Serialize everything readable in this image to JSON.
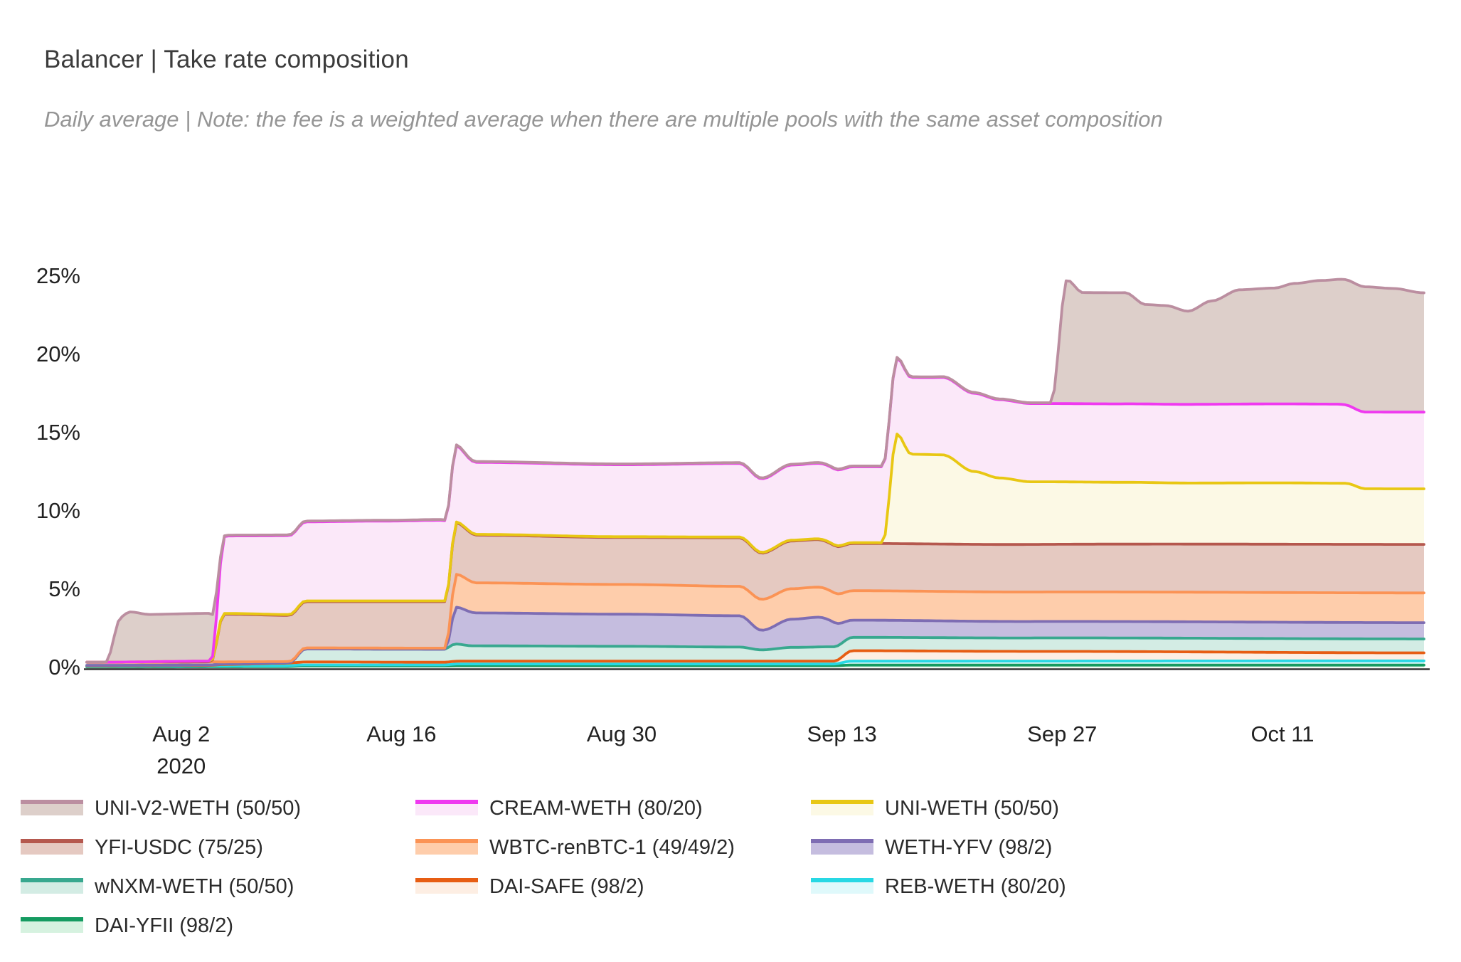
{
  "header": {
    "title": "Balancer | Take rate composition",
    "subtitle": "Daily average | Note: the fee is a weighted average when there are multiple pools with the same asset composition"
  },
  "chart_data": {
    "type": "area",
    "stacked": true,
    "title": "Balancer | Take rate composition",
    "subtitle": "Daily average | Note: the fee is a weighted average when there are multiple pools with the same asset composition",
    "x_axis": {
      "start_date": "2020-07-27",
      "end_date": "2020-10-20",
      "year_label": "2020",
      "ticks": [
        {
          "day": 6,
          "label": "Aug 2",
          "sublabel": "2020"
        },
        {
          "day": 20,
          "label": "Aug 16"
        },
        {
          "day": 34,
          "label": "Aug 30"
        },
        {
          "day": 48,
          "label": "Sep 13"
        },
        {
          "day": 62,
          "label": "Sep 27"
        },
        {
          "day": 76,
          "label": "Oct 11"
        }
      ]
    },
    "y_axis": {
      "unit": "%",
      "ticks": [
        0,
        5,
        10,
        15,
        20,
        25
      ],
      "max": 25.6
    },
    "axis_color": "#333333",
    "note": "series listed bottom-to-top of stack; keyframes are [day_since_2020-07-27, value_percent]",
    "series": [
      {
        "name": "DAI-YFII (98/2)",
        "line_color": "#159b61",
        "fill_color": "#d6f2e0",
        "keyframes": [
          [
            0,
            0.03
          ],
          [
            12.5,
            0.05
          ],
          [
            13.8,
            0.09
          ],
          [
            22.7,
            0.09
          ],
          [
            23.6,
            0.11
          ],
          [
            47.5,
            0.11
          ],
          [
            48.6,
            0.15
          ],
          [
            85,
            0.15
          ]
        ]
      },
      {
        "name": "REB-WETH (80/20)",
        "line_color": "#28d8e4",
        "fill_color": "#dff9fb",
        "keyframes": [
          [
            0,
            0.03
          ],
          [
            12.5,
            0.05
          ],
          [
            13.8,
            0.07
          ],
          [
            22.7,
            0.07
          ],
          [
            23.6,
            0.11
          ],
          [
            47.5,
            0.11
          ],
          [
            48.6,
            0.25
          ],
          [
            85,
            0.27
          ]
        ]
      },
      {
        "name": "DAI-SAFE (98/2)",
        "line_color": "#e75d13",
        "fill_color": "#fdeee3",
        "keyframes": [
          [
            0,
            0.04
          ],
          [
            7.8,
            0.04
          ],
          [
            8.7,
            0.1
          ],
          [
            13.2,
            0.17
          ],
          [
            14,
            0.19
          ],
          [
            22.7,
            0.17
          ],
          [
            23.6,
            0.18
          ],
          [
            47.5,
            0.18
          ],
          [
            48.7,
            0.67
          ],
          [
            60,
            0.62
          ],
          [
            85,
            0.51
          ]
        ]
      },
      {
        "name": "wNXM-WETH (50/50)",
        "line_color": "#38a88f",
        "fill_color": "#d3ece4",
        "keyframes": [
          [
            0,
            0.03
          ],
          [
            12.9,
            0.03
          ],
          [
            13.9,
            0.83
          ],
          [
            22.7,
            0.83
          ],
          [
            23.4,
            1.1
          ],
          [
            24.5,
            0.98
          ],
          [
            34,
            0.95
          ],
          [
            41.5,
            0.9
          ],
          [
            42.9,
            0.72
          ],
          [
            44.8,
            0.88
          ],
          [
            47.5,
            0.92
          ],
          [
            48.7,
            0.85
          ],
          [
            85,
            0.89
          ]
        ]
      },
      {
        "name": "WETH-YFV (98/2)",
        "line_color": "#7e6db3",
        "fill_color": "#c5bddf",
        "keyframes": [
          [
            0,
            0
          ],
          [
            22.8,
            0
          ],
          [
            23.5,
            2.35
          ],
          [
            24.8,
            2.1
          ],
          [
            34,
            2.05
          ],
          [
            41.5,
            2.0
          ],
          [
            42.9,
            1.25
          ],
          [
            44.8,
            1.8
          ],
          [
            46.5,
            1.9
          ],
          [
            48.7,
            1.1
          ],
          [
            60,
            1.05
          ],
          [
            85,
            1.04
          ]
        ]
      },
      {
        "name": "WBTC-renBTC-1 (49/49/2)",
        "line_color": "#fb9355",
        "fill_color": "#fecdab",
        "keyframes": [
          [
            0,
            0.2
          ],
          [
            7.8,
            0.2
          ],
          [
            8.7,
            0.13
          ],
          [
            13.2,
            0.07
          ],
          [
            22.8,
            0.07
          ],
          [
            23.5,
            2.1
          ],
          [
            24.8,
            1.92
          ],
          [
            34,
            1.9
          ],
          [
            41.5,
            1.88
          ],
          [
            42.9,
            1.98
          ],
          [
            44.8,
            1.95
          ],
          [
            48.7,
            1.88
          ],
          [
            85,
            1.9
          ]
        ]
      },
      {
        "name": "YFI-USDC (75/25)",
        "line_color": "#b5584e",
        "fill_color": "#e5c9c1",
        "keyframes": [
          [
            0,
            0
          ],
          [
            7.9,
            0
          ],
          [
            8.7,
            3.05
          ],
          [
            13.2,
            2.95
          ],
          [
            22.8,
            2.97
          ],
          [
            23.4,
            3.3
          ],
          [
            24.8,
            3.05
          ],
          [
            34,
            3.0
          ],
          [
            41.5,
            3.1
          ],
          [
            42.9,
            2.95
          ],
          [
            44.8,
            3.05
          ],
          [
            48,
            3.02
          ],
          [
            85,
            3.1
          ]
        ]
      },
      {
        "name": "UNI-WETH (50/50)",
        "line_color": "#e8c713",
        "fill_color": "#fcf9e5",
        "keyframes": [
          [
            0,
            0
          ],
          [
            8.2,
            0.05
          ],
          [
            50.6,
            0.05
          ],
          [
            51.5,
            7.0
          ],
          [
            52.4,
            5.72
          ],
          [
            54.4,
            5.7
          ],
          [
            56.4,
            4.65
          ],
          [
            58,
            4.25
          ],
          [
            60,
            4.0
          ],
          [
            66,
            3.95
          ],
          [
            70,
            3.9
          ],
          [
            76,
            3.92
          ],
          [
            80,
            3.9
          ],
          [
            81.3,
            3.55
          ],
          [
            85,
            3.55
          ]
        ]
      },
      {
        "name": "CREAM-WETH (80/20)",
        "line_color": "#ef3af0",
        "fill_color": "#fbe8f9",
        "keyframes": [
          [
            0,
            0
          ],
          [
            7.9,
            0
          ],
          [
            8.8,
            4.95
          ],
          [
            13.5,
            5.05
          ],
          [
            19,
            5.1
          ],
          [
            22.6,
            5.15
          ],
          [
            23.3,
            4.9
          ],
          [
            24.5,
            4.6
          ],
          [
            34,
            4.6
          ],
          [
            41.5,
            4.7
          ],
          [
            42.9,
            4.7
          ],
          [
            44.8,
            4.8
          ],
          [
            48,
            4.85
          ],
          [
            51.5,
            4.85
          ],
          [
            52.6,
            4.9
          ],
          [
            56.4,
            5.0
          ],
          [
            60,
            5.0
          ],
          [
            79.5,
            5.05
          ],
          [
            81,
            4.9
          ],
          [
            85,
            4.9
          ]
        ]
      },
      {
        "name": "UNI-V2-WETH (50/50)",
        "line_color": "#bb8ea0",
        "fill_color": "#ddcfca",
        "keyframes": [
          [
            0,
            0
          ],
          [
            1.2,
            0
          ],
          [
            2.2,
            2.9
          ],
          [
            2.7,
            3.2
          ],
          [
            4,
            3.02
          ],
          [
            7.8,
            3.05
          ],
          [
            8.7,
            0.05
          ],
          [
            61.3,
            0.05
          ],
          [
            62.3,
            7.9
          ],
          [
            63.3,
            7.1
          ],
          [
            66,
            7.1
          ],
          [
            67.3,
            6.35
          ],
          [
            68.6,
            6.3
          ],
          [
            70,
            5.95
          ],
          [
            71.5,
            6.6
          ],
          [
            73.3,
            7.3
          ],
          [
            75.5,
            7.4
          ],
          [
            76.8,
            7.7
          ],
          [
            78.5,
            7.9
          ],
          [
            80,
            8.0
          ],
          [
            81.3,
            8.0
          ],
          [
            83,
            7.9
          ],
          [
            85,
            7.62
          ]
        ]
      }
    ]
  },
  "legend": {
    "columns": [
      [
        "UNI-V2-WETH (50/50)",
        "YFI-USDC (75/25)",
        "wNXM-WETH (50/50)",
        "DAI-YFII (98/2)"
      ],
      [
        "CREAM-WETH (80/20)",
        "WBTC-renBTC-1 (49/49/2)",
        "DAI-SAFE (98/2)"
      ],
      [
        "UNI-WETH (50/50)",
        "WETH-YFV (98/2)",
        "REB-WETH (80/20)"
      ]
    ]
  }
}
